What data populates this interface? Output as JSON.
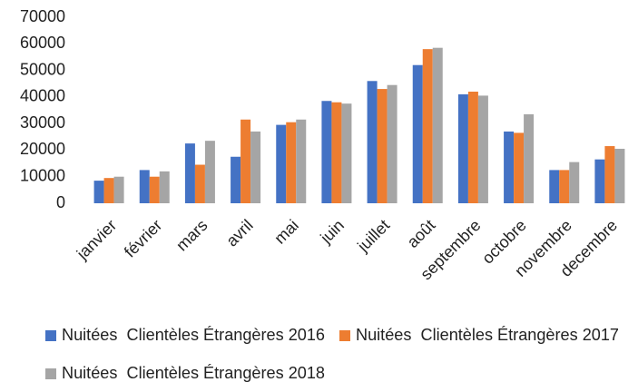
{
  "chart_data": {
    "type": "bar",
    "categories": [
      "janvier",
      "février",
      "mars",
      "avril",
      "mai",
      "juin",
      "juillet",
      "août",
      "septembre",
      "octobre",
      "novembre",
      "decembre"
    ],
    "series": [
      {
        "name": "Nuitées  Clientèles Étrangères 2016",
        "color": "#4472c4",
        "values": [
          8500,
          12500,
          22500,
          17500,
          29500,
          38500,
          46000,
          52000,
          41000,
          27000,
          12500,
          16500
        ]
      },
      {
        "name": "Nuitées  Clientèles Étrangères 2017",
        "color": "#ed7d31",
        "values": [
          9500,
          10000,
          14500,
          31500,
          30500,
          38000,
          43000,
          58000,
          42000,
          26500,
          12500,
          21500
        ]
      },
      {
        "name": "Nuitées  Clientèles Étrangères 2018",
        "color": "#a5a5a5",
        "values": [
          10000,
          12000,
          23500,
          27000,
          31500,
          37500,
          44500,
          58500,
          40500,
          33500,
          15500,
          20500
        ]
      }
    ],
    "ylim": [
      0,
      70000
    ],
    "yticks": [
      0,
      10000,
      20000,
      30000,
      40000,
      50000,
      60000,
      70000
    ],
    "grid": false,
    "legend": "bottom"
  }
}
